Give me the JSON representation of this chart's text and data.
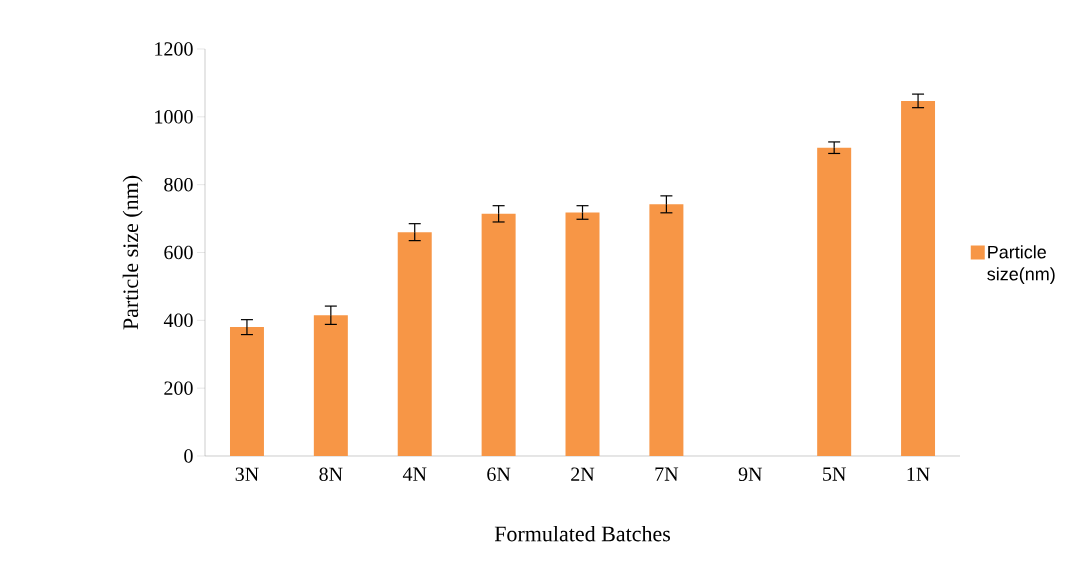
{
  "chart_data": {
    "type": "bar",
    "xlabel": "Formulated Batches",
    "ylabel": "Particle size (nm)",
    "categories": [
      "3N",
      "8N",
      "4N",
      "6N",
      "2N",
      "7N",
      "9N",
      "5N",
      "1N"
    ],
    "series": [
      {
        "name": "Particle size(nm)",
        "color": "#f79646",
        "values": [
          380,
          415,
          660,
          714,
          718,
          742,
          null,
          909,
          1047
        ],
        "errors": [
          22,
          27,
          25,
          24,
          20,
          25,
          null,
          17,
          20
        ]
      }
    ],
    "ylim": [
      0,
      1200
    ],
    "yticks": [
      0,
      200,
      400,
      600,
      800,
      1000,
      1200
    ],
    "legend": "right"
  }
}
